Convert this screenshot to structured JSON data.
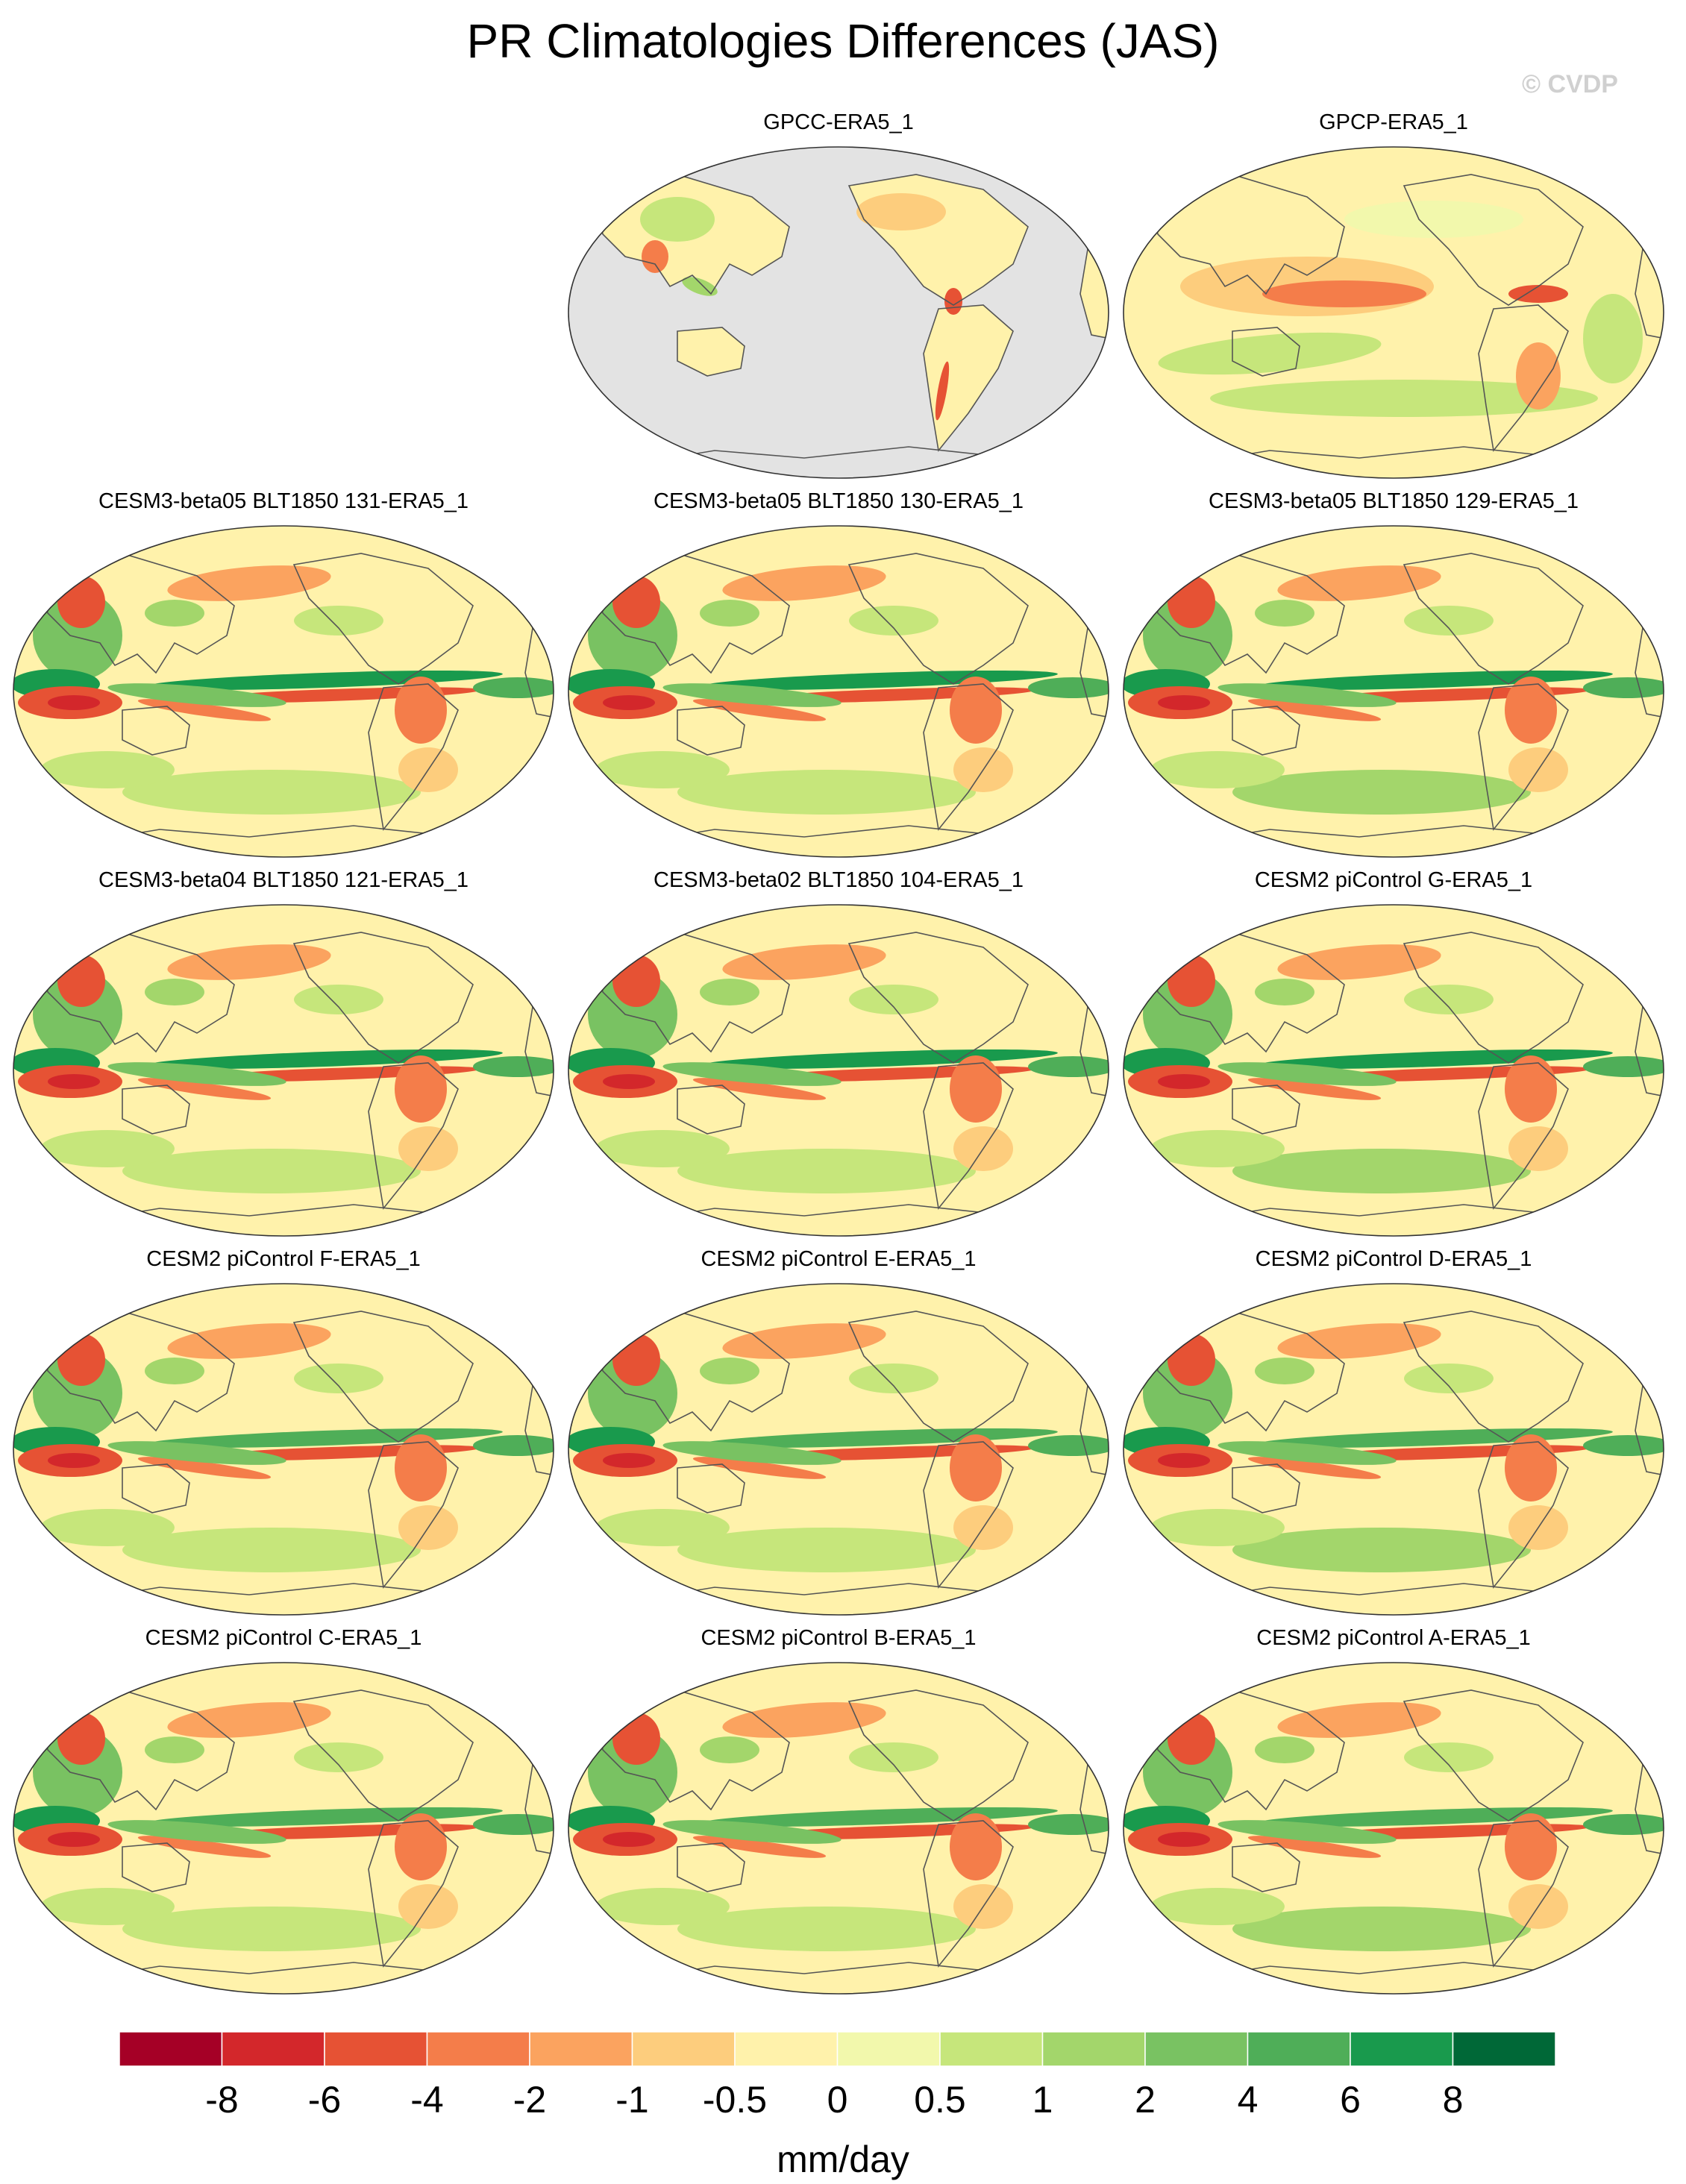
{
  "title": "PR Climatologies Differences (JAS)",
  "watermark": "© CVDP",
  "chart_data": {
    "type": "map-panels",
    "season": "JAS",
    "variable": "PR",
    "projection": "robinson-ellipse, Pacific-centered",
    "missing_data_color": "#e3e3e3",
    "panels": [
      {
        "name": "GPCC-ERA5_1",
        "land_only": true
      },
      {
        "name": "GPCP-ERA5_1",
        "land_only": false
      },
      {
        "name": "CESM3-beta05 BLT1850 131-ERA5_1",
        "land_only": false
      },
      {
        "name": "CESM3-beta05 BLT1850 130-ERA5_1",
        "land_only": false
      },
      {
        "name": "CESM3-beta05 BLT1850 129-ERA5_1",
        "land_only": false
      },
      {
        "name": "CESM3-beta04 BLT1850 121-ERA5_1",
        "land_only": false
      },
      {
        "name": "CESM3-beta02 BLT1850 104-ERA5_1",
        "land_only": false
      },
      {
        "name": "CESM2 piControl G-ERA5_1",
        "land_only": false
      },
      {
        "name": "CESM2 piControl F-ERA5_1",
        "land_only": false
      },
      {
        "name": "CESM2 piControl E-ERA5_1",
        "land_only": false
      },
      {
        "name": "CESM2 piControl D-ERA5_1",
        "land_only": false
      },
      {
        "name": "CESM2 piControl C-ERA5_1",
        "land_only": false
      },
      {
        "name": "CESM2 piControl B-ERA5_1",
        "land_only": false
      },
      {
        "name": "CESM2 piControl A-ERA5_1",
        "land_only": false
      }
    ],
    "colorbar": {
      "unit_label": "mm/day",
      "colors": [
        "#a50026",
        "#d3272b",
        "#e65234",
        "#f47d4a",
        "#fba35f",
        "#fdcd7d",
        "#fff2ab",
        "#f2f8ac",
        "#c6e67b",
        "#a3d66b",
        "#79c262",
        "#4fae58",
        "#199a4d",
        "#006837"
      ],
      "tick_labels": [
        "-8",
        "-6",
        "-4",
        "-2",
        "-1",
        "-0.5",
        "0",
        "0.5",
        "1",
        "2",
        "4",
        "6",
        "8"
      ]
    }
  }
}
